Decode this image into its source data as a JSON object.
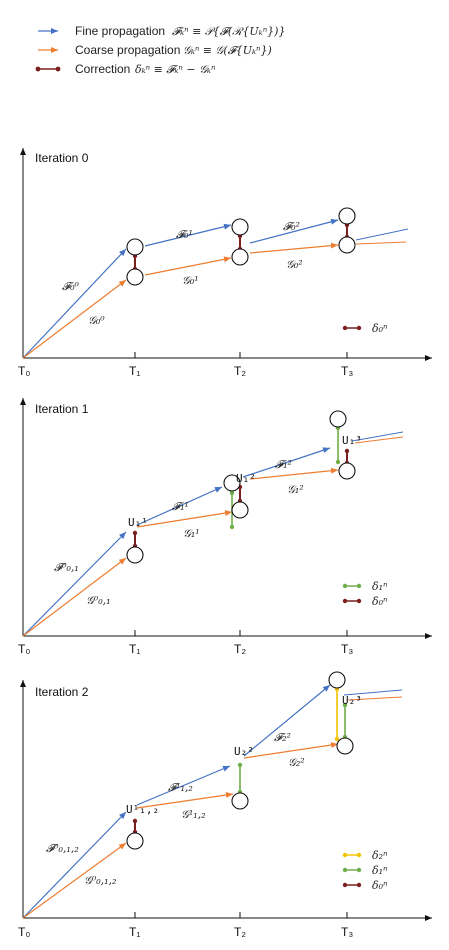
{
  "colors": {
    "fine": "#4472C4",
    "coarse": "#ED7D31",
    "corr0": "#7B1E1E",
    "corr1": "#70AD47",
    "corr2": "#F2C200",
    "axis": "#111111"
  },
  "legend": {
    "fine_label": "Fine propagation",
    "fine_formula": "𝓕ₖⁿ ≡ 𝒫{𝓕(ℛ{Uₖⁿ})}",
    "coarse_label": "Coarse propagation",
    "coarse_formula": "𝒢ₖⁿ ≡ 𝒢(𝓕{Uₖⁿ})",
    "corr_label": "Correction",
    "corr_formula": "δₖⁿ ≡ 𝓕ₖⁿ − 𝒢ₖⁿ"
  },
  "panels": [
    {
      "title": "Iteration 0",
      "ticks": [
        "T₀",
        "T₁",
        "T₂",
        "T₃"
      ],
      "fine_labels": [
        "𝓕₀⁰",
        "𝓕₀¹",
        "𝓕₀²"
      ],
      "coarse_labels": [
        "𝒢₀⁰",
        "𝒢₀¹",
        "𝒢₀²"
      ],
      "u_labels": [],
      "legend": [
        {
          "label": "δ₀ⁿ",
          "color": "corr0"
        }
      ]
    },
    {
      "title": "Iteration 1",
      "ticks": [
        "T₀",
        "T₁",
        "T₂",
        "T₃"
      ],
      "fine_labels": [
        "𝓕⁰₀,₁",
        "𝓕₁¹",
        "𝓕₁²"
      ],
      "coarse_labels": [
        "𝒢⁰₀,₁",
        "𝒢₁¹",
        "𝒢₁²"
      ],
      "u_labels": [
        "U₁¹",
        "U₁²",
        "U₁³"
      ],
      "legend": [
        {
          "label": "δ₁ⁿ",
          "color": "corr1"
        },
        {
          "label": "δ₀ⁿ",
          "color": "corr0"
        }
      ]
    },
    {
      "title": "Iteration 2",
      "ticks": [
        "T₀",
        "T₁",
        "T₂",
        "T₃"
      ],
      "fine_labels": [
        "𝓕⁰₀,₁,₂",
        "𝓕¹₁,₂",
        "𝓕₂²"
      ],
      "coarse_labels": [
        "𝒢⁰₀,₁,₂",
        "𝒢¹₁,₂",
        "𝒢₂²"
      ],
      "u_labels": [
        "U¹₁,₂",
        "U₂²",
        "U₂³"
      ],
      "legend": [
        {
          "label": "δ₂ⁿ",
          "color": "corr2"
        },
        {
          "label": "δ₁ⁿ",
          "color": "corr1"
        },
        {
          "label": "δ₀ⁿ",
          "color": "corr0"
        }
      ]
    }
  ]
}
